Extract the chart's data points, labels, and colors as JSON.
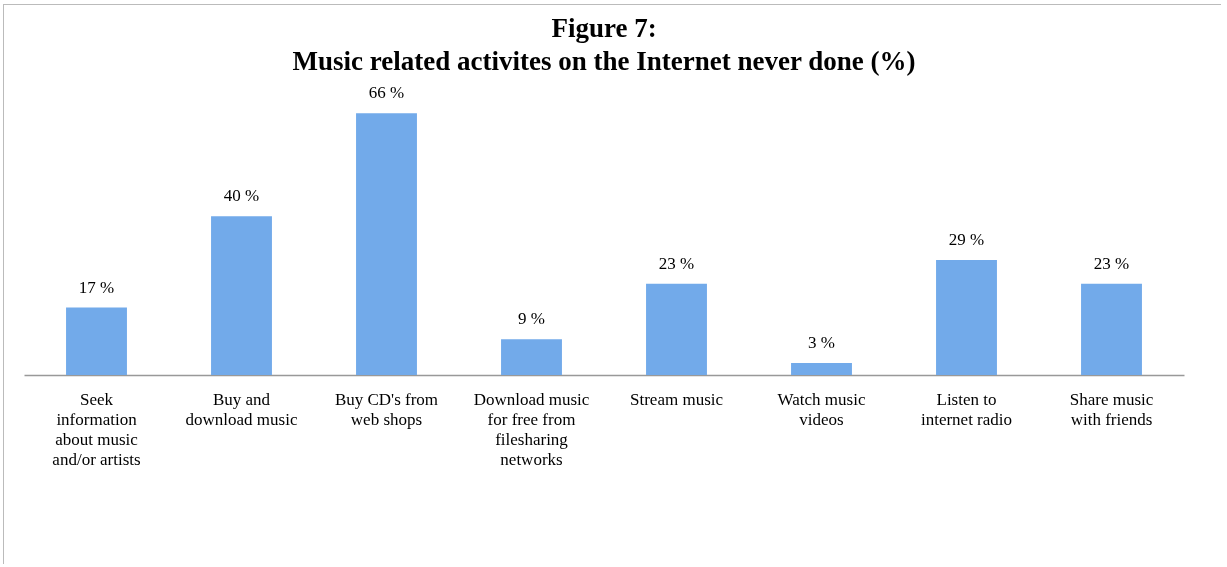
{
  "chart_data": {
    "type": "bar",
    "title": [
      "Figure 7:",
      "Music related activites on the Internet never done (%)"
    ],
    "categories": [
      "Seek information about music and/or artists",
      "Buy and download music",
      "Buy CD's from web shops",
      "Download music for free from filesharing networks",
      "Stream music",
      "Watch music videos",
      "Listen to internet radio",
      "Share music with friends"
    ],
    "values": [
      17,
      40,
      66,
      9,
      23,
      3,
      29,
      23
    ],
    "value_labels": [
      "17 %",
      "40 %",
      "66 %",
      "9 %",
      "23 %",
      "3 %",
      "29 %",
      "23 %"
    ],
    "color": "#72aaea"
  }
}
